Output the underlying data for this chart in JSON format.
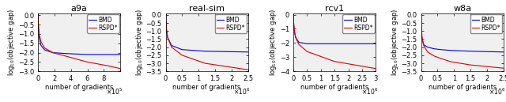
{
  "subplots": [
    {
      "title": "a9a",
      "xlabel": "number of gradients",
      "ylabel": "log$_{10}$(objective gap)",
      "xlim": [
        0,
        1000000.0
      ],
      "ylim": [
        -3,
        0.1
      ],
      "yticks": [
        0,
        -0.5,
        -1,
        -1.5,
        -2,
        -2.5,
        -3
      ],
      "xtick_vals": [
        0,
        200000.0,
        400000.0,
        600000.0,
        800000.0,
        1000000.0
      ],
      "xtick_labels": [
        "0",
        "2",
        "4",
        "6",
        "8",
        ""
      ],
      "xscale_exp": 5,
      "bmd_x": [
        0,
        2000,
        6000,
        15000,
        35000,
        80000,
        180000,
        350000,
        600000,
        850000,
        1000000
      ],
      "bmd_y": [
        0,
        -0.3,
        -0.7,
        -1.2,
        -1.6,
        -1.85,
        -2.0,
        -2.05,
        -2.1,
        -2.1,
        -2.1
      ],
      "rspd_x": [
        0,
        2000,
        6000,
        15000,
        35000,
        80000,
        180000,
        350000,
        600000,
        850000,
        1000000
      ],
      "rspd_y": [
        0,
        -0.25,
        -0.55,
        -1.0,
        -1.4,
        -1.75,
        -2.0,
        -2.2,
        -2.5,
        -2.7,
        -2.85
      ]
    },
    {
      "title": "real-sim",
      "xlabel": "number of gradients",
      "ylabel": "log$_{10}$(objective gap)",
      "xlim": [
        0,
        2500000.0
      ],
      "ylim": [
        -3.5,
        0.1
      ],
      "yticks": [
        0,
        -0.5,
        -1,
        -1.5,
        -2,
        -2.5,
        -3,
        -3.5
      ],
      "xtick_vals": [
        0,
        500000.0,
        1000000.0,
        1500000.0,
        2000000.0,
        2500000.0
      ],
      "xtick_labels": [
        "0",
        "0.5",
        "1",
        "1.5",
        "2",
        "2.5"
      ],
      "xscale_exp": 6,
      "bmd_x": [
        0,
        5000,
        20000,
        60000,
        180000,
        500000,
        1200000,
        2500000
      ],
      "bmd_y": [
        0,
        -0.4,
        -0.9,
        -1.4,
        -1.9,
        -2.15,
        -2.25,
        -2.3
      ],
      "rspd_x": [
        0,
        5000,
        20000,
        60000,
        180000,
        500000,
        1200000,
        2500000
      ],
      "rspd_y": [
        0,
        -0.35,
        -0.8,
        -1.4,
        -2.0,
        -2.5,
        -3.0,
        -3.4
      ]
    },
    {
      "title": "rcv1",
      "xlabel": "number of gradients",
      "ylabel": "log$_{10}$(objective gap)",
      "xlim": [
        0,
        3000000.0
      ],
      "ylim": [
        -4,
        0.1
      ],
      "yticks": [
        0,
        -1,
        -2,
        -3,
        -4
      ],
      "xtick_vals": [
        0,
        500000.0,
        1000000.0,
        1500000.0,
        2000000.0,
        2500000.0,
        3000000.0
      ],
      "xtick_labels": [
        "0",
        "0.5",
        "1",
        "1.5",
        "2",
        "2.5",
        "3"
      ],
      "xscale_exp": 6,
      "bmd_x": [
        0,
        3000,
        10000,
        30000,
        80000,
        200000,
        500000,
        1500000,
        3000000
      ],
      "bmd_y": [
        0,
        -0.25,
        -0.6,
        -1.1,
        -1.6,
        -1.95,
        -2.05,
        -2.05,
        -2.05
      ],
      "rspd_x": [
        0,
        3000,
        10000,
        30000,
        80000,
        200000,
        500000,
        1500000,
        3000000
      ],
      "rspd_y": [
        0,
        -0.2,
        -0.55,
        -1.0,
        -1.6,
        -2.1,
        -2.6,
        -3.3,
        -3.8
      ]
    },
    {
      "title": "w8a",
      "xlabel": "number of gradients",
      "ylabel": "log$_{10}$(objective gap)",
      "xlim": [
        0,
        2500000.0
      ],
      "ylim": [
        -3.5,
        0.1
      ],
      "yticks": [
        0,
        -0.5,
        -1,
        -1.5,
        -2,
        -2.5,
        -3,
        -3.5
      ],
      "xtick_vals": [
        0,
        500000.0,
        1000000.0,
        1500000.0,
        2000000.0,
        2500000.0
      ],
      "xtick_labels": [
        "0",
        "0.5",
        "1",
        "1.5",
        "2",
        "2.5"
      ],
      "xscale_exp": 6,
      "bmd_x": [
        0,
        3000,
        10000,
        30000,
        80000,
        200000,
        400000,
        600000,
        900000,
        1500000,
        2500000
      ],
      "bmd_y": [
        0,
        -0.4,
        -0.9,
        -1.5,
        -1.85,
        -2.0,
        -2.1,
        -2.15,
        -2.2,
        -2.25,
        -2.3
      ],
      "rspd_x": [
        0,
        3000,
        10000,
        30000,
        80000,
        200000,
        400000,
        600000,
        900000,
        1500000,
        2500000
      ],
      "rspd_y": [
        0,
        -0.35,
        -0.8,
        -1.4,
        -1.9,
        -2.3,
        -2.55,
        -2.7,
        -2.9,
        -3.1,
        -3.3
      ]
    }
  ],
  "bmd_color": "#0000dd",
  "rspd_color": "#dd0000",
  "bmd_label": "BMD",
  "rspd_label": "RSPD*",
  "line_width": 0.8,
  "title_fontsize": 8,
  "label_fontsize": 6,
  "tick_fontsize": 6,
  "legend_fontsize": 5.5
}
